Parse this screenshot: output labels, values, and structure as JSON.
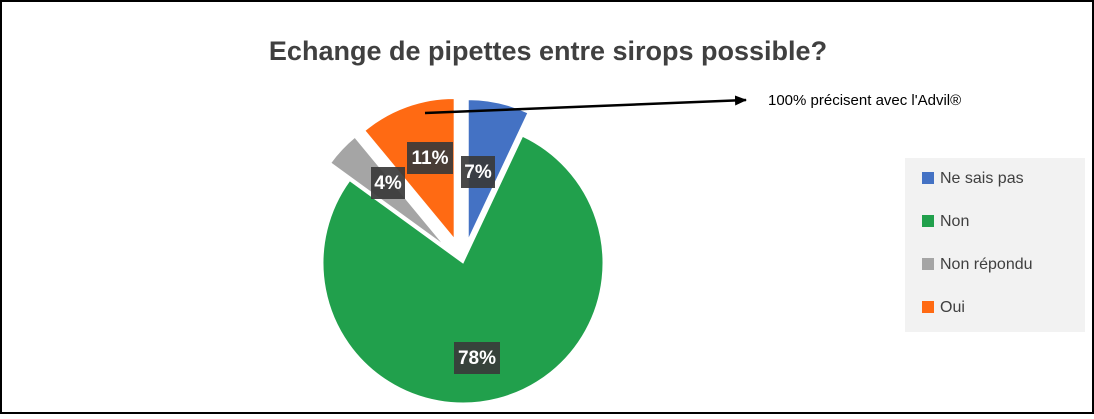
{
  "chart_data": {
    "type": "pie",
    "title": "Echange de pipettes entre sirops possible?",
    "categories": [
      "Ne sais pas",
      "Non",
      "Non répondu",
      "Oui"
    ],
    "values": [
      7,
      78,
      4,
      11
    ],
    "value_labels": [
      "7%",
      "78%",
      "4%",
      "11%"
    ],
    "colors": [
      "#4472c4",
      "#21a04c",
      "#a5a5a5",
      "#ff6a13"
    ],
    "annotation": "100% précisent avec l'Advil®",
    "legend": "right"
  }
}
